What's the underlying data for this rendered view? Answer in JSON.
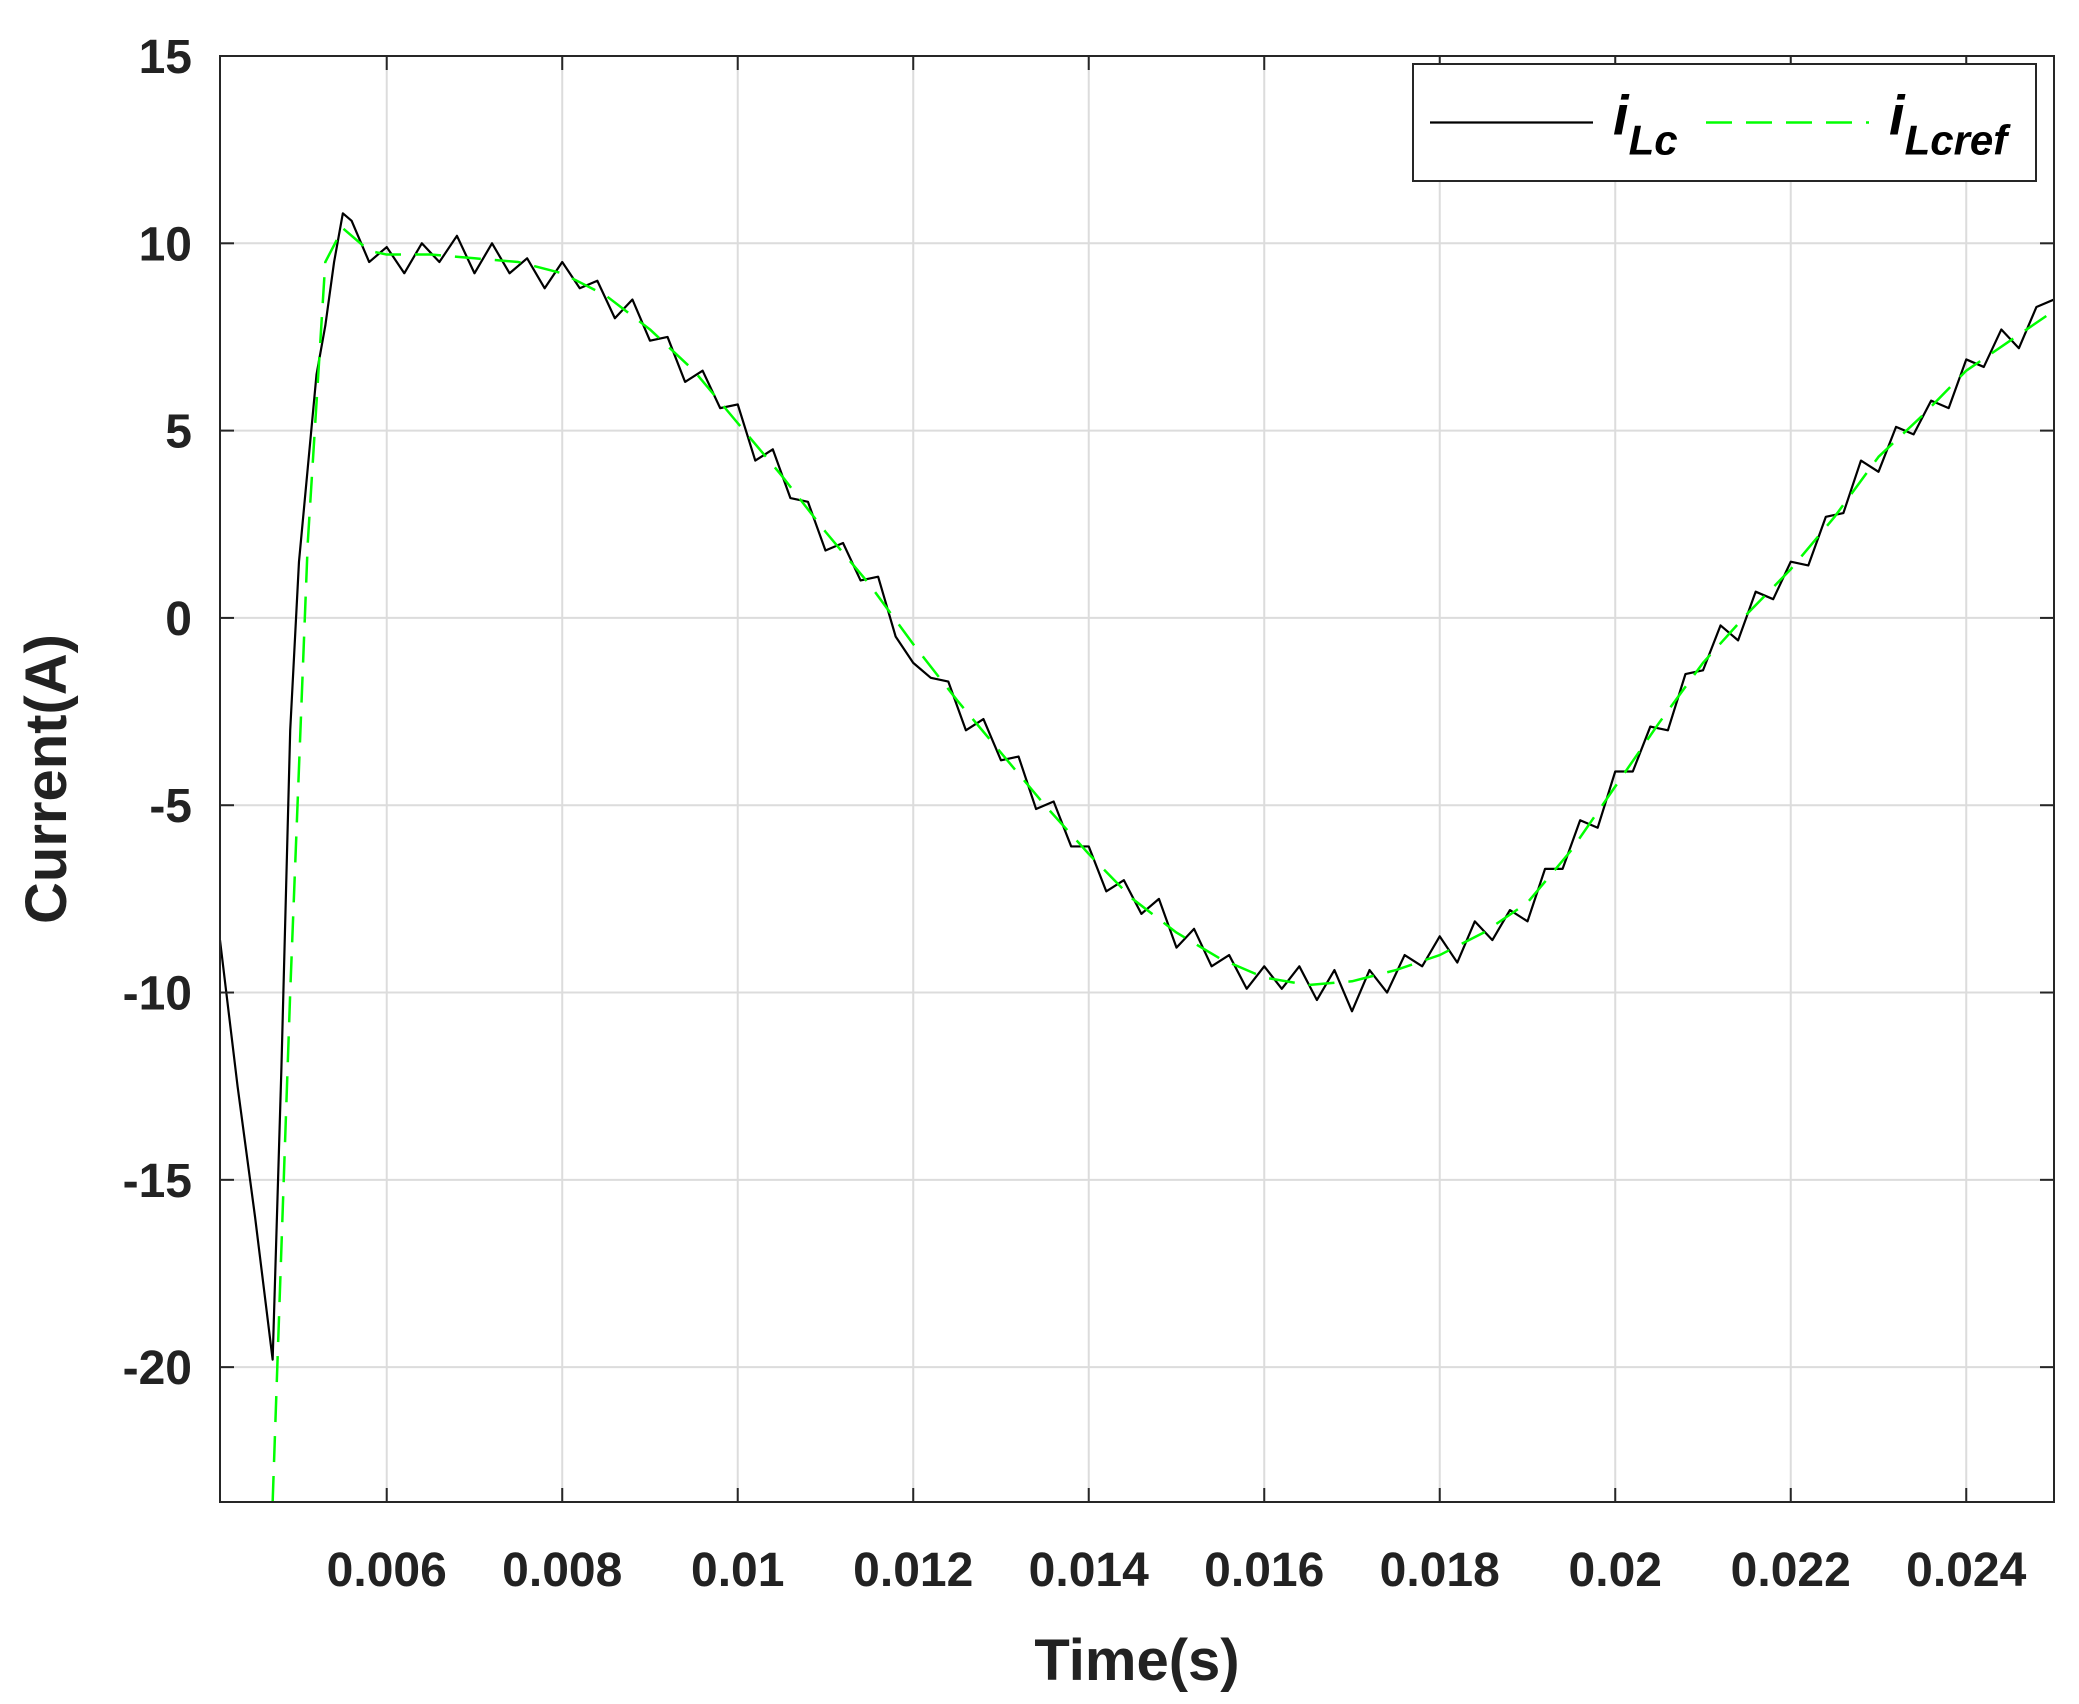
{
  "chart_data": {
    "type": "line",
    "xlabel": "Time(s)",
    "ylabel": "Current(A)",
    "xlim": [
      0.0041,
      0.025
    ],
    "ylim": [
      -23.6,
      15
    ],
    "xticks": [
      0.006,
      0.008,
      0.01,
      0.012,
      0.014,
      0.016,
      0.018,
      0.02,
      0.022,
      0.024
    ],
    "yticks": [
      -20,
      -15,
      -10,
      -5,
      0,
      5,
      10,
      15
    ],
    "grid": true,
    "legend": "upper right",
    "series": [
      {
        "name": "iLc",
        "color": "#000000",
        "dashed": false,
        "x": [
          0.0041,
          0.0043,
          0.0045,
          0.0047,
          0.0048,
          0.0049,
          0.005,
          0.0051,
          0.0052,
          0.0053,
          0.0054,
          0.0055,
          0.0056,
          0.0058,
          0.006,
          0.0062,
          0.0064,
          0.0066,
          0.0068,
          0.007,
          0.0072,
          0.0074,
          0.0076,
          0.0078,
          0.008,
          0.0082,
          0.0084,
          0.0086,
          0.0088,
          0.009,
          0.0092,
          0.0094,
          0.0096,
          0.0098,
          0.01,
          0.0102,
          0.0104,
          0.0106,
          0.0108,
          0.011,
          0.0112,
          0.0114,
          0.0116,
          0.0118,
          0.012,
          0.0122,
          0.0124,
          0.0126,
          0.0128,
          0.013,
          0.0132,
          0.0134,
          0.0136,
          0.0138,
          0.014,
          0.0142,
          0.0144,
          0.0146,
          0.0148,
          0.015,
          0.0152,
          0.0154,
          0.0156,
          0.0158,
          0.016,
          0.0162,
          0.0164,
          0.0166,
          0.0168,
          0.017,
          0.0172,
          0.0174,
          0.0176,
          0.0178,
          0.018,
          0.0182,
          0.0184,
          0.0186,
          0.0188,
          0.019,
          0.0192,
          0.0194,
          0.0196,
          0.0198,
          0.02,
          0.0202,
          0.0204,
          0.0206,
          0.0208,
          0.021,
          0.0212,
          0.0214,
          0.0216,
          0.0218,
          0.022,
          0.0222,
          0.0224,
          0.0226,
          0.0228,
          0.023,
          0.0232,
          0.0234,
          0.0236,
          0.0238,
          0.024,
          0.0242,
          0.0244,
          0.0246,
          0.0248,
          0.025
        ],
        "values": [
          -8.6,
          -12.5,
          -16,
          -19.8,
          -12,
          -3,
          1.5,
          4,
          6.5,
          7.8,
          9.5,
          10.8,
          10.6,
          9.5,
          9.9,
          9.2,
          10.0,
          9.5,
          10.2,
          9.2,
          10.0,
          9.2,
          9.6,
          8.8,
          9.5,
          8.8,
          9.0,
          8.0,
          8.5,
          7.4,
          7.5,
          6.3,
          6.6,
          5.6,
          5.7,
          4.2,
          4.5,
          3.2,
          3.1,
          1.8,
          2.0,
          1.0,
          1.1,
          -0.5,
          -1.2,
          -1.6,
          -1.7,
          -3.0,
          -2.7,
          -3.8,
          -3.7,
          -5.1,
          -4.9,
          -6.1,
          -6.1,
          -7.3,
          -7.0,
          -7.9,
          -7.5,
          -8.8,
          -8.3,
          -9.3,
          -9.0,
          -9.9,
          -9.3,
          -9.9,
          -9.3,
          -10.2,
          -9.4,
          -10.5,
          -9.4,
          -10.0,
          -9.0,
          -9.3,
          -8.5,
          -9.2,
          -8.1,
          -8.6,
          -7.8,
          -8.1,
          -6.7,
          -6.7,
          -5.4,
          -5.6,
          -4.1,
          -4.1,
          -2.9,
          -3.0,
          -1.5,
          -1.4,
          -0.2,
          -0.6,
          0.7,
          0.5,
          1.5,
          1.4,
          2.7,
          2.8,
          4.2,
          3.9,
          5.1,
          4.9,
          5.8,
          5.6,
          6.9,
          6.7,
          7.7,
          7.2,
          8.3,
          8.5
        ]
      },
      {
        "name": "iLcref",
        "color": "#00ff00",
        "dashed": true,
        "x": [
          0.0047,
          0.0049,
          0.0051,
          0.0053,
          0.0055,
          0.0058,
          0.006,
          0.0065,
          0.007,
          0.0075,
          0.008,
          0.0085,
          0.009,
          0.0095,
          0.01,
          0.0105,
          0.011,
          0.0115,
          0.012,
          0.0125,
          0.013,
          0.0135,
          0.014,
          0.0145,
          0.015,
          0.0155,
          0.016,
          0.0165,
          0.017,
          0.0175,
          0.018,
          0.0185,
          0.019,
          0.0195,
          0.02,
          0.0205,
          0.021,
          0.0215,
          0.022,
          0.0225,
          0.023,
          0.0235,
          0.024,
          0.0245,
          0.025
        ],
        "values": [
          -23.6,
          -10,
          2,
          9.5,
          10.4,
          9.8,
          9.7,
          9.7,
          9.6,
          9.5,
          9.2,
          8.6,
          7.7,
          6.6,
          5.2,
          3.8,
          2.3,
          0.9,
          -0.7,
          -2.2,
          -3.6,
          -5.0,
          -6.3,
          -7.5,
          -8.4,
          -9.1,
          -9.6,
          -9.8,
          -9.7,
          -9.4,
          -9.0,
          -8.4,
          -7.6,
          -6.2,
          -4.5,
          -2.8,
          -1.2,
          0.1,
          1.3,
          2.7,
          4.3,
          5.4,
          6.6,
          7.4,
          8.2
        ]
      }
    ]
  }
}
